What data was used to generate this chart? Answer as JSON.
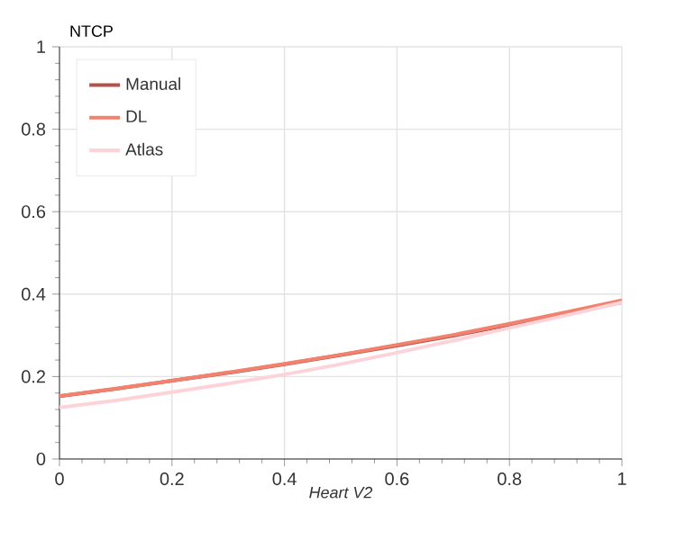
{
  "chart_data": {
    "type": "line",
    "xlabel": "Heart V2",
    "ylabel": "NTCP",
    "x": [
      0,
      0.1,
      0.2,
      0.3,
      0.4,
      0.5,
      0.6,
      0.7,
      0.8,
      0.9,
      1
    ],
    "series": [
      {
        "name": "Manual",
        "color": "#b5524c",
        "values": [
          0.152,
          0.17,
          0.19,
          0.209,
          0.23,
          0.252,
          0.275,
          0.299,
          0.325,
          0.352,
          0.38
        ]
      },
      {
        "name": "DL",
        "color": "#f2826e",
        "values": [
          0.153,
          0.171,
          0.19,
          0.21,
          0.231,
          0.253,
          0.277,
          0.301,
          0.328,
          0.356,
          0.385
        ]
      },
      {
        "name": "Atlas",
        "color": "#fdd3da",
        "values": [
          0.125,
          0.142,
          0.162,
          0.183,
          0.205,
          0.23,
          0.258,
          0.287,
          0.318,
          0.348,
          0.38
        ]
      }
    ],
    "xlim": [
      0,
      1
    ],
    "ylim": [
      0,
      1
    ],
    "xticks": [
      0,
      0.2,
      0.4,
      0.6,
      0.8,
      1
    ],
    "yticks": [
      0,
      0.2,
      0.4,
      0.6,
      0.8,
      1
    ],
    "grid": true,
    "legend": "top left",
    "line_style": "solid",
    "marker": "none"
  }
}
